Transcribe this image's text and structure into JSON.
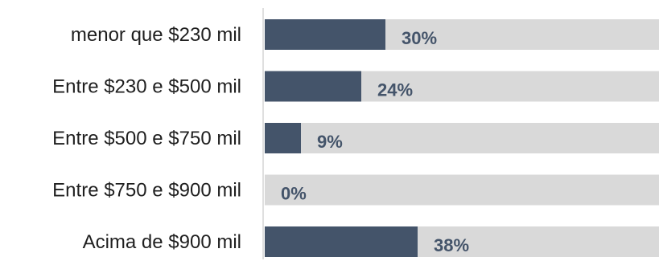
{
  "chart_data": {
    "type": "bar",
    "orientation": "horizontal",
    "categories": [
      "menor que $230 mil",
      "Entre $230 e $500 mil",
      "Entre $500 e $750 mil",
      "Entre $750 e $900 mil",
      "Acima de $900 mil"
    ],
    "values": [
      30,
      24,
      9,
      0,
      38
    ],
    "value_labels": [
      "30%",
      "24%",
      "9%",
      "0%",
      "38%"
    ],
    "xlim": [
      0,
      100
    ],
    "grid": false,
    "legend": "none",
    "colors": {
      "bar": "#44546A",
      "track": "#D9D9D9",
      "value_label": "#44546A",
      "axis_line": "#BFBFBF",
      "category_text": "#1F1F1F"
    }
  }
}
